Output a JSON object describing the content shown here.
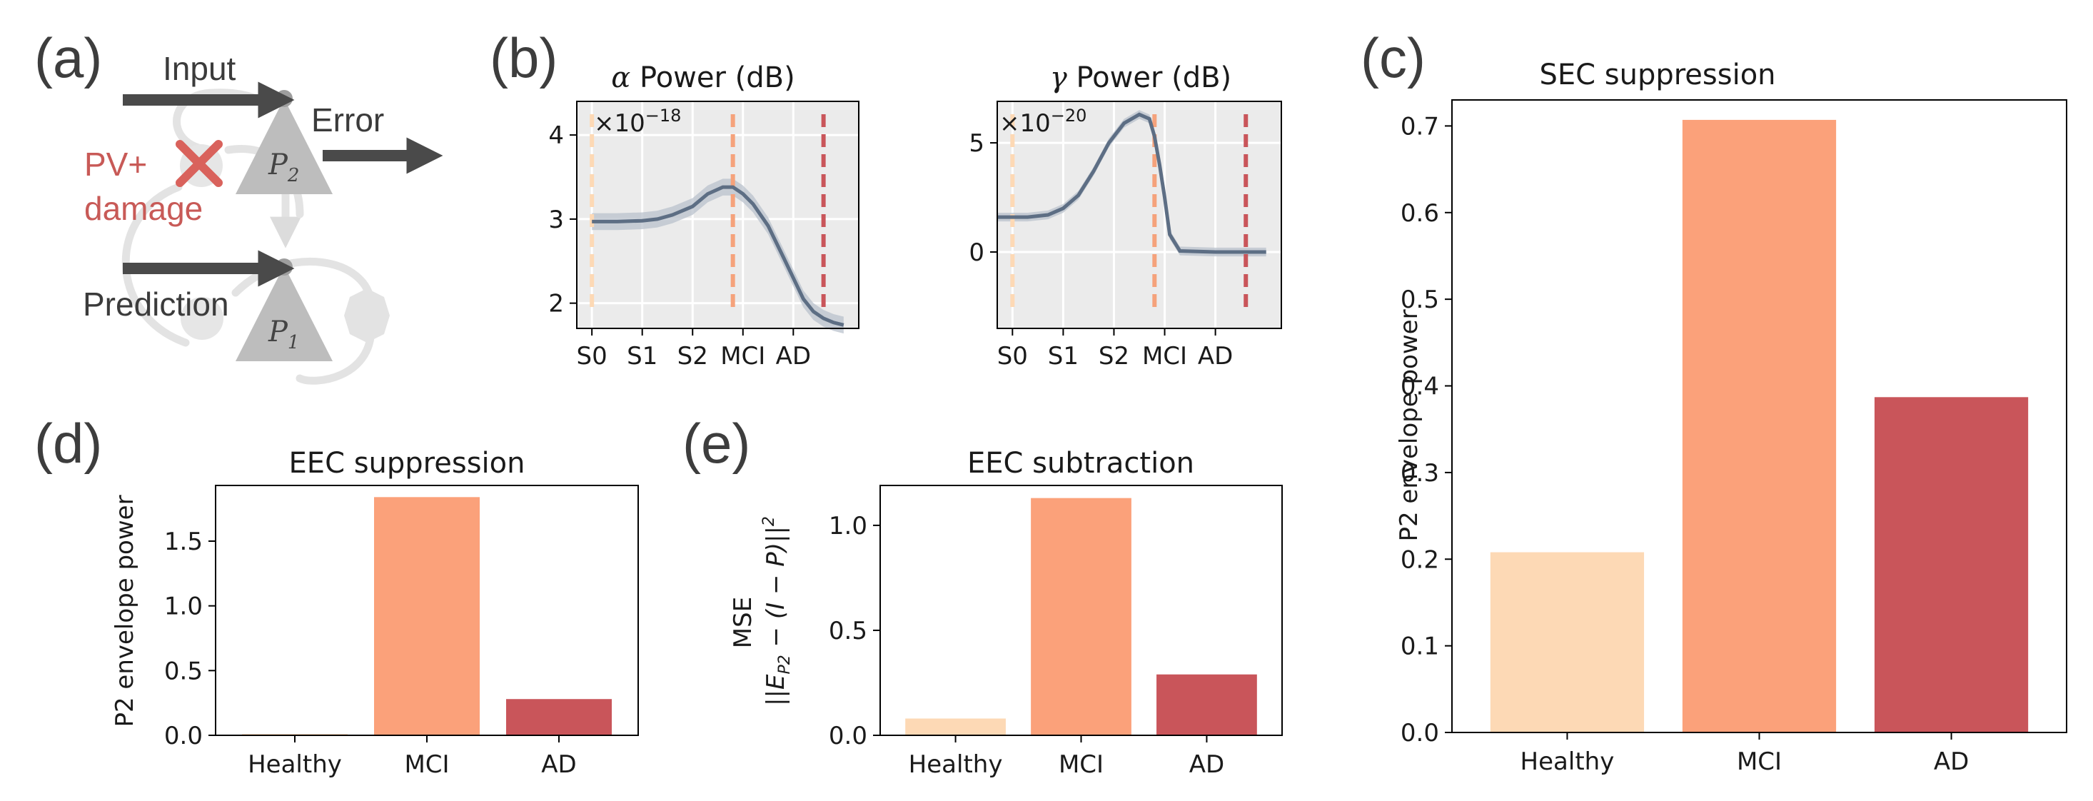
{
  "panel_labels": {
    "a": "(a)",
    "b": "(b)",
    "c": "(c)",
    "d": "(d)",
    "e": "(e)"
  },
  "diagram": {
    "input_label": "Input",
    "error_label": "Error",
    "damage_label_line1": "PV+",
    "damage_label_line2": "damage",
    "prediction_label": "Prediction",
    "p2_label": "P",
    "p2_sub": "2",
    "p1_label": "P",
    "p1_sub": "1",
    "colors": {
      "cell": "#bdbdbd",
      "faint": "#e3e3e3",
      "arrow": "#4a4a4a",
      "cross": "#d9625c"
    },
    "icons": [
      "pyramidal-neuron-p2-icon",
      "pyramidal-neuron-p1-icon",
      "cross-mark-icon",
      "interneuron-icon"
    ]
  },
  "chart_data": [
    {
      "id": "b-alpha",
      "type": "line",
      "title_symbol": "α",
      "title_rest": " Power (dB)",
      "scale_prefix": "×10",
      "scale_exp": "−18",
      "categories": [
        "S0",
        "S1",
        "S2",
        "MCI",
        "AD"
      ],
      "xlim": [
        -0.3,
        5.3
      ],
      "ylim": [
        1.7,
        4.4
      ],
      "yticks": [
        2,
        3,
        4
      ],
      "x": [
        0,
        0.5,
        1,
        1.3,
        1.6,
        2,
        2.3,
        2.6,
        2.8,
        3.0,
        3.2,
        3.5,
        3.8,
        4.0,
        4.2,
        4.4,
        4.6,
        4.8,
        5.0
      ],
      "y": [
        2.97,
        2.97,
        2.98,
        3.0,
        3.05,
        3.15,
        3.3,
        3.38,
        3.38,
        3.3,
        3.18,
        2.92,
        2.55,
        2.3,
        2.05,
        1.9,
        1.82,
        1.77,
        1.74
      ],
      "band": 0.1,
      "vlines": [
        {
          "x": 0,
          "color": "#fdd9b5"
        },
        {
          "x": 2.8,
          "color": "#f5a27b"
        },
        {
          "x": 4.6,
          "color": "#c9555a"
        }
      ],
      "line_color": "#5d6e84",
      "background": "#ebebeb",
      "grid": true
    },
    {
      "id": "b-gamma",
      "type": "line",
      "title_symbol": "γ",
      "title_rest": " Power (dB)",
      "scale_prefix": "×10",
      "scale_exp": "−20",
      "categories": [
        "S0",
        "S1",
        "S2",
        "MCI",
        "AD"
      ],
      "xlim": [
        -0.3,
        5.3
      ],
      "ylim": [
        -3.5,
        6.9
      ],
      "yticks": [
        0,
        5
      ],
      "x": [
        -0.3,
        0.3,
        0.7,
        1.0,
        1.3,
        1.6,
        1.9,
        2.2,
        2.5,
        2.7,
        2.8,
        2.9,
        3.0,
        3.1,
        3.3,
        4.0,
        5.0
      ],
      "y": [
        1.6,
        1.6,
        1.7,
        2.0,
        2.6,
        3.7,
        5.0,
        5.9,
        6.3,
        6.1,
        5.3,
        4.0,
        2.5,
        0.8,
        0.05,
        0.0,
        0.0
      ],
      "band": 0.2,
      "vlines": [
        {
          "x": 0,
          "color": "#fdd9b5"
        },
        {
          "x": 2.8,
          "color": "#f5a27b"
        },
        {
          "x": 4.6,
          "color": "#c9555a"
        }
      ],
      "line_color": "#5d6e84",
      "background": "#ebebeb",
      "grid": true
    },
    {
      "id": "c",
      "type": "bar",
      "title": "SEC suppression",
      "ylabel": "P2 envelope power",
      "categories": [
        "Healthy",
        "MCI",
        "AD"
      ],
      "values": [
        0.208,
        0.707,
        0.387
      ],
      "colors": [
        "#fdd9b5",
        "#fba17a",
        "#c9555a"
      ],
      "ylim": [
        0,
        0.73
      ],
      "yticks": [
        0.0,
        0.1,
        0.2,
        0.3,
        0.4,
        0.5,
        0.6,
        0.7
      ]
    },
    {
      "id": "d",
      "type": "bar",
      "title": "EEC suppression",
      "ylabel": "P2 envelope power",
      "categories": [
        "Healthy",
        "MCI",
        "AD"
      ],
      "values": [
        0.01,
        1.84,
        0.28
      ],
      "colors": [
        "#fdd9b5",
        "#fba17a",
        "#c9555a"
      ],
      "ylim": [
        0,
        1.93
      ],
      "yticks": [
        0.0,
        0.5,
        1.0,
        1.5
      ]
    },
    {
      "id": "e",
      "type": "bar",
      "title": "EEC subtraction",
      "ylabel_line1": "MSE",
      "ylabel_line2_a": "||E",
      "ylabel_line2_sub": "P2",
      "ylabel_line2_b": " − (I − P)||",
      "ylabel_line2_sup": "2",
      "categories": [
        "Healthy",
        "MCI",
        "AD"
      ],
      "values": [
        0.08,
        1.13,
        0.29
      ],
      "colors": [
        "#fdd9b5",
        "#fba17a",
        "#c9555a"
      ],
      "ylim": [
        0,
        1.19
      ],
      "yticks": [
        0.0,
        0.5,
        1.0
      ]
    }
  ]
}
